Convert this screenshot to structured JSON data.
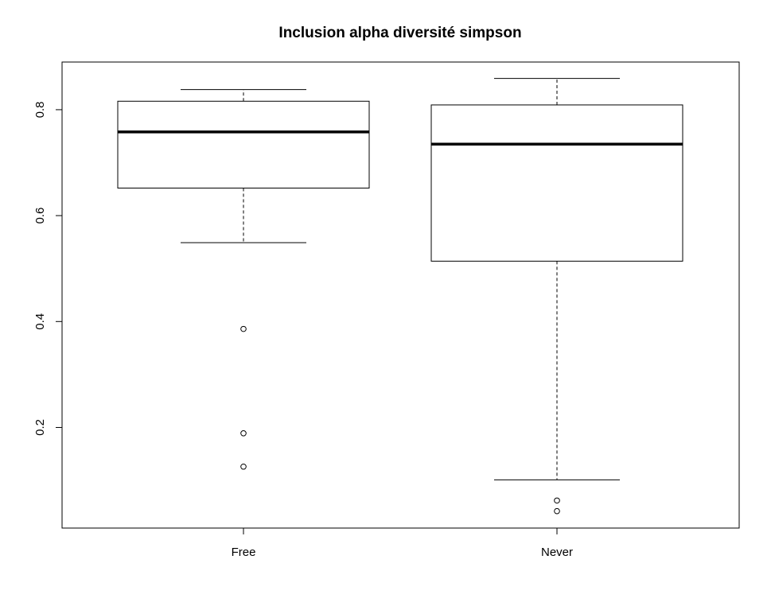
{
  "chart_data": {
    "type": "boxplot",
    "title": "Inclusion alpha diversité simpson",
    "xlabel": "",
    "ylabel": "",
    "categories": [
      "Free",
      "Never"
    ],
    "boxes": [
      {
        "category": "Free",
        "whisker_low": 0.549,
        "q1": 0.652,
        "median": 0.758,
        "q3": 0.816,
        "whisker_high": 0.838,
        "outliers": [
          0.386,
          0.189,
          0.126
        ]
      },
      {
        "category": "Never",
        "whisker_low": 0.101,
        "q1": 0.514,
        "median": 0.735,
        "q3": 0.809,
        "whisker_high": 0.859,
        "outliers": [
          0.062,
          0.042
        ]
      }
    ],
    "y_ticks": [
      0.2,
      0.4,
      0.6,
      0.8
    ],
    "y_tick_labels": [
      "0.2",
      "0.4",
      "0.6",
      "0.8"
    ],
    "ylim": [
      0.01,
      0.89
    ],
    "grid": false,
    "legend": "none"
  }
}
